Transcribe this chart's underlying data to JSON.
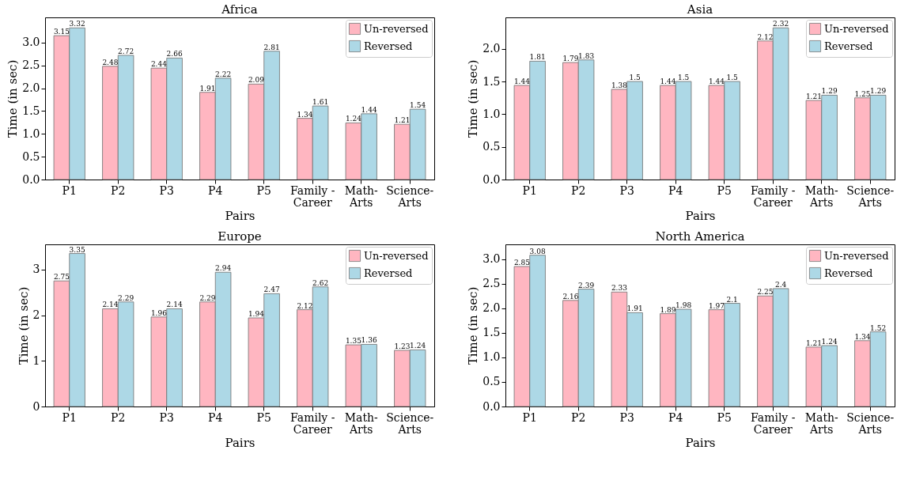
{
  "chart_data": [
    {
      "type": "bar",
      "title": "Africa",
      "xlabel": "Pairs",
      "ylabel": "Time (in sec)",
      "categories": [
        "P1",
        "P2",
        "P3",
        "P4",
        "P5",
        "Family -\nCareer",
        "Math-\nArts",
        "Science-\nArts"
      ],
      "series": [
        {
          "name": "Un-reversed",
          "color": "#ffb6c1",
          "values": [
            3.15,
            2.48,
            2.44,
            1.91,
            2.09,
            1.34,
            1.24,
            1.21
          ]
        },
        {
          "name": "Reversed",
          "color": "#add8e6",
          "values": [
            3.32,
            2.72,
            2.66,
            2.22,
            2.81,
            1.61,
            1.44,
            1.54
          ]
        }
      ],
      "ylim": [
        0,
        3.55
      ],
      "yticks": [
        {
          "value": 0,
          "label": "0.0"
        },
        0.5,
        {
          "value": 1,
          "label": "1.0"
        },
        1.5,
        {
          "value": 2,
          "label": "2.0"
        },
        2.5,
        {
          "value": 3,
          "label": "3.0"
        }
      ],
      "legend": "top right",
      "grid": false,
      "data_labels": true
    },
    {
      "type": "bar",
      "title": "Asia",
      "xlabel": "Pairs",
      "ylabel": "Time (in sec)",
      "categories": [
        "P1",
        "P2",
        "P3",
        "P4",
        "P5",
        "Family -\nCareer",
        "Math-\nArts",
        "Science-\nArts"
      ],
      "series": [
        {
          "name": "Un-reversed",
          "color": "#ffb6c1",
          "values": [
            1.44,
            1.79,
            1.38,
            1.44,
            1.44,
            2.12,
            1.21,
            1.25
          ]
        },
        {
          "name": "Reversed",
          "color": "#add8e6",
          "values": [
            1.81,
            1.83,
            1.5,
            1.5,
            1.5,
            2.32,
            1.29,
            1.29
          ]
        }
      ],
      "ylim": [
        0,
        2.48
      ],
      "yticks": [
        {
          "value": 0,
          "label": "0.0"
        },
        0.5,
        {
          "value": 1,
          "label": "1.0"
        },
        1.5,
        {
          "value": 2,
          "label": "2.0"
        }
      ],
      "legend": "top right",
      "grid": false,
      "data_labels": true
    },
    {
      "type": "bar",
      "title": "Europe",
      "xlabel": "Pairs",
      "ylabel": "Time (in sec)",
      "categories": [
        "P1",
        "P2",
        "P3",
        "P4",
        "P5",
        "Family -\nCareer",
        "Math-\nArts",
        "Science-\nArts"
      ],
      "series": [
        {
          "name": "Un-reversed",
          "color": "#ffb6c1",
          "values": [
            2.75,
            2.14,
            1.96,
            2.29,
            1.94,
            2.12,
            1.35,
            1.23
          ]
        },
        {
          "name": "Reversed",
          "color": "#add8e6",
          "values": [
            3.35,
            2.29,
            2.14,
            2.94,
            2.47,
            2.62,
            1.36,
            1.24
          ]
        }
      ],
      "ylim": [
        0,
        3.55
      ],
      "yticks": [
        {
          "value": 0,
          "label": "0"
        },
        {
          "value": 1,
          "label": "1"
        },
        {
          "value": 2,
          "label": "2"
        },
        {
          "value": 3,
          "label": "3"
        }
      ],
      "legend": "top right",
      "grid": false,
      "data_labels": true
    },
    {
      "type": "bar",
      "title": "North America",
      "xlabel": "Pairs",
      "ylabel": "Time (in sec)",
      "categories": [
        "P1",
        "P2",
        "P3",
        "P4",
        "P5",
        "Family -\nCareer",
        "Math-\nArts",
        "Science-\nArts"
      ],
      "series": [
        {
          "name": "Un-reversed",
          "color": "#ffb6c1",
          "values": [
            2.85,
            2.16,
            2.33,
            1.89,
            1.97,
            2.25,
            1.21,
            1.34
          ]
        },
        {
          "name": "Reversed",
          "color": "#add8e6",
          "values": [
            3.08,
            2.39,
            1.91,
            1.98,
            2.1,
            2.4,
            1.24,
            1.52
          ]
        }
      ],
      "ylim": [
        0,
        3.3
      ],
      "yticks": [
        {
          "value": 0,
          "label": "0.0"
        },
        0.5,
        {
          "value": 1,
          "label": "1.0"
        },
        1.5,
        {
          "value": 2,
          "label": "2.0"
        },
        2.5,
        {
          "value": 3,
          "label": "3.0"
        }
      ],
      "legend": "top right",
      "grid": false,
      "data_labels": true
    }
  ]
}
